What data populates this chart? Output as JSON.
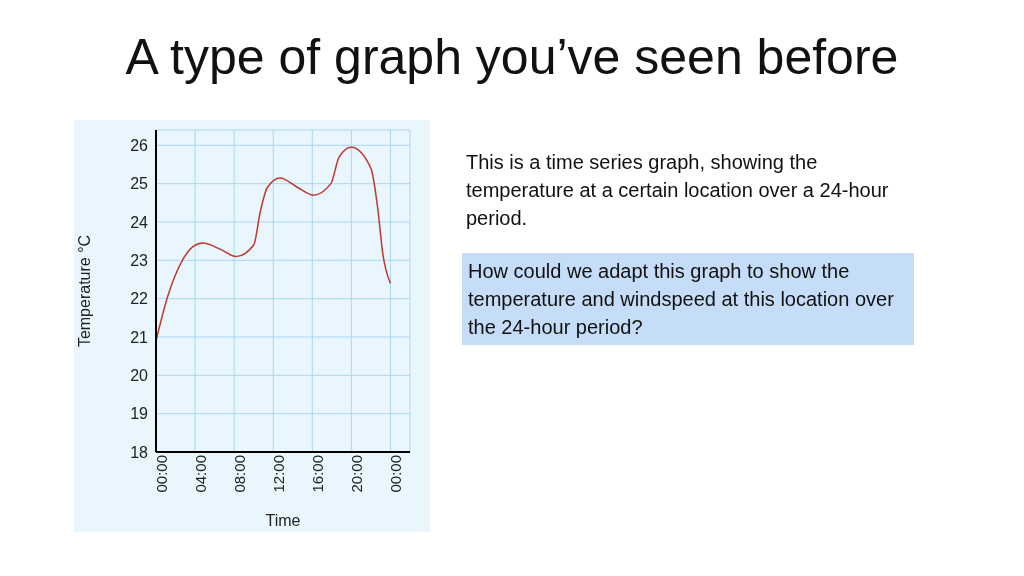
{
  "chart_data": {
    "type": "line",
    "title": "A type of graph you’ve seen before",
    "xlabel": "Time",
    "ylabel": "Temperature °C",
    "x": [
      0,
      1.25,
      2.7,
      3.75,
      4.8,
      6.5,
      8.2,
      10,
      10.7,
      11.4,
      12.7,
      14.5,
      16.1,
      17.9,
      18.75,
      20,
      22,
      22.7,
      23.2,
      24
    ],
    "series": [
      {
        "color": "#c0392b",
        "values": [
          20.9,
          22.1,
          23.0,
          23.35,
          23.45,
          23.3,
          23.1,
          23.4,
          24.3,
          24.9,
          25.15,
          24.9,
          24.7,
          25.0,
          25.7,
          25.95,
          25.4,
          24.35,
          23.2,
          22.4
        ]
      }
    ],
    "xlim": [
      0,
      26
    ],
    "xticks": [
      {
        "value": 0,
        "label": "00:00"
      },
      {
        "value": 4,
        "label": "04:00"
      },
      {
        "value": 8,
        "label": "08:00"
      },
      {
        "value": 12,
        "label": "12:00"
      },
      {
        "value": 16,
        "label": "16:00"
      },
      {
        "value": 20,
        "label": "20:00"
      },
      {
        "value": 24,
        "label": "00:00"
      }
    ],
    "ylim": [
      18,
      26.4
    ],
    "yticks": [
      18,
      19,
      20,
      21,
      22,
      23,
      24,
      25,
      26
    ],
    "grid": true,
    "marker": "none",
    "line_style": "solid",
    "annotations": [
      "This is a time series graph, showing the temperature at a certain location over a 24-hour period.",
      "How could we adapt this graph to show the temperature and windspeed at this location over the 24-hour period?"
    ]
  }
}
